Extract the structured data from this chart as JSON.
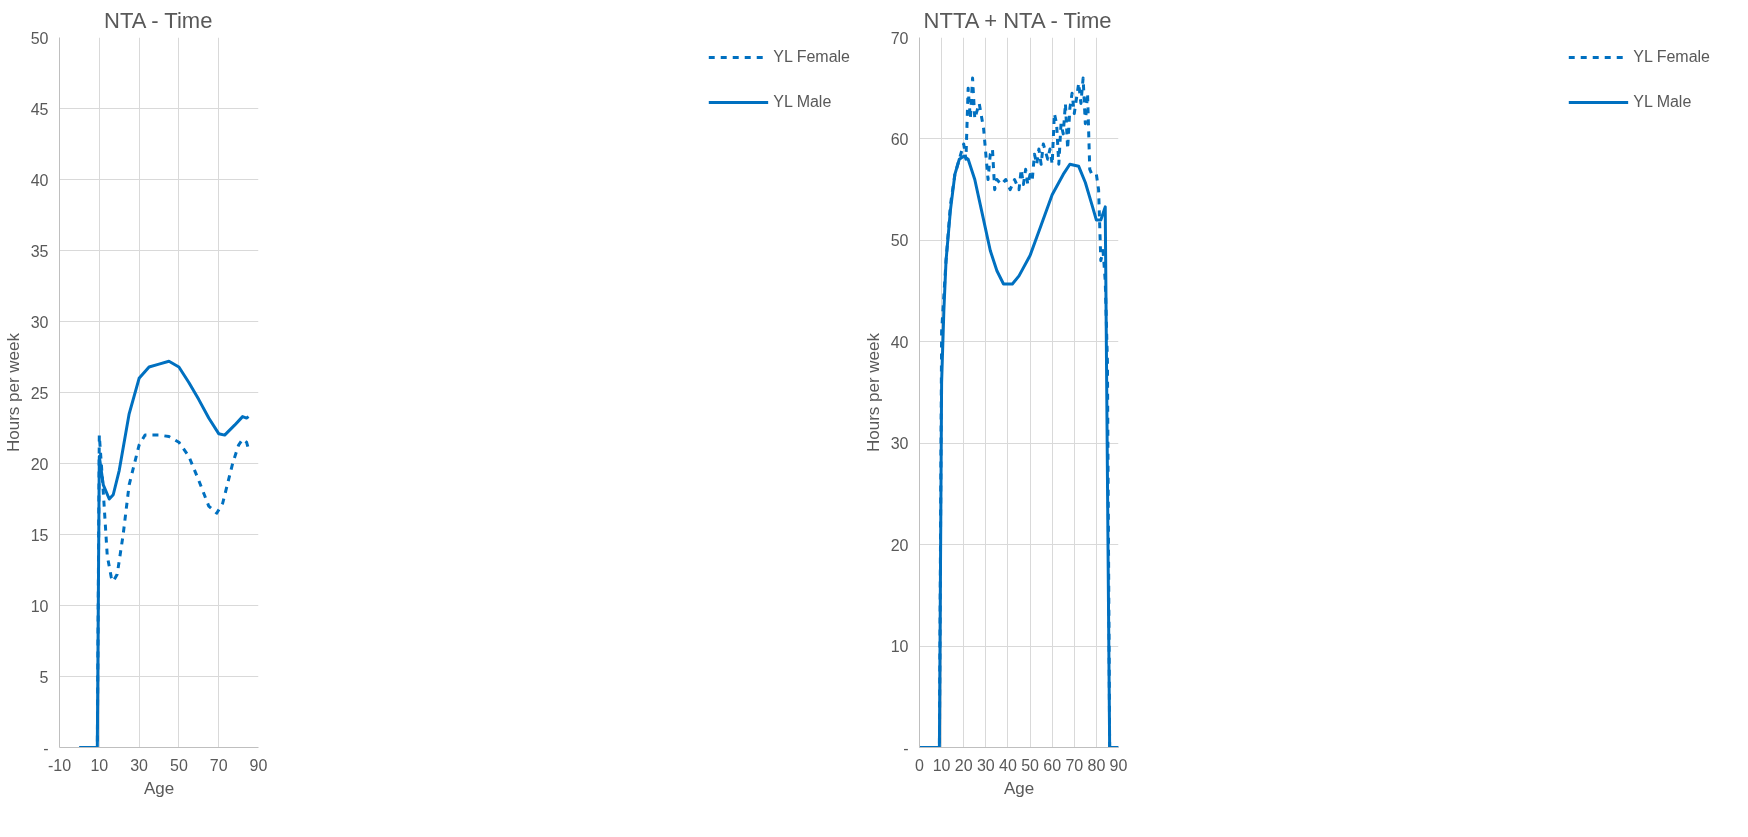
{
  "chart_data": [
    {
      "type": "line",
      "title": "NTA - Time",
      "xlabel": "Age",
      "ylabel": "Hours per week",
      "xlim": [
        -10,
        90
      ],
      "xticks": [
        -10,
        10,
        30,
        50,
        70,
        90
      ],
      "ylim": [
        0,
        50
      ],
      "yticks": [
        {
          "value": 0,
          "label": "-"
        },
        5,
        10,
        15,
        20,
        25,
        30,
        35,
        40,
        45,
        50
      ],
      "grid": true,
      "legend": "right",
      "series": [
        {
          "name": "YL Female",
          "color": "#0070c0",
          "line_style": "dashed",
          "x": [
            0,
            9,
            10,
            10.5,
            12,
            14,
            16,
            17,
            19,
            22,
            25,
            30,
            33,
            40,
            45,
            50,
            55,
            60,
            65,
            69,
            72,
            77,
            80,
            82,
            84,
            85
          ],
          "values": [
            0,
            0,
            22,
            21,
            18,
            13.5,
            12,
            11.7,
            12.2,
            15,
            18.5,
            21.3,
            22,
            22,
            21.9,
            21.5,
            20.5,
            18.8,
            17,
            16.5,
            17.2,
            20,
            21.3,
            21.7,
            21.5,
            21
          ]
        },
        {
          "name": "YL Male",
          "color": "#0070c0",
          "line_style": "solid",
          "x": [
            0,
            9,
            10,
            12,
            15,
            17,
            20,
            25,
            30,
            35,
            40,
            45,
            50,
            55,
            60,
            65,
            70,
            73,
            78,
            82,
            84,
            85
          ],
          "values": [
            0,
            0,
            20.5,
            18.5,
            17.5,
            17.8,
            19.5,
            23.5,
            26,
            26.8,
            27,
            27.2,
            26.8,
            25.7,
            24.5,
            23.2,
            22.1,
            22,
            22.7,
            23.3,
            23.2,
            23.3
          ]
        }
      ]
    },
    {
      "type": "line",
      "title": "NTTA + NTA - Time",
      "xlabel": "Age",
      "ylabel": "Hours per week",
      "xlim": [
        0,
        90
      ],
      "xticks": [
        0,
        10,
        20,
        30,
        40,
        50,
        60,
        70,
        80,
        90
      ],
      "ylim": [
        0,
        70
      ],
      "yticks": [
        {
          "value": 0,
          "label": "-"
        },
        10,
        20,
        30,
        40,
        50,
        60,
        70
      ],
      "grid": true,
      "legend": "right",
      "series": [
        {
          "name": "YL Female",
          "color": "#0070c0",
          "line_style": "dashed",
          "x": [
            0,
            9,
            10,
            12,
            14,
            16,
            18,
            20,
            21,
            22,
            23,
            24,
            25,
            27,
            29,
            31,
            32,
            33,
            34,
            35,
            37,
            39,
            41,
            42,
            43,
            45,
            46,
            47,
            48,
            49,
            50,
            51,
            52,
            53,
            54,
            55,
            56,
            58,
            59,
            60,
            61,
            62,
            63,
            64,
            65,
            66,
            67,
            68,
            69,
            70,
            72,
            73,
            74,
            75,
            76,
            77,
            78,
            80,
            81,
            82,
            83,
            84,
            85,
            86,
            90
          ],
          "values": [
            0,
            0,
            41,
            48,
            53.5,
            56.5,
            58,
            59.5,
            58,
            65,
            62,
            66,
            62,
            63.5,
            61,
            56,
            58.5,
            59,
            55,
            56,
            55.5,
            56,
            55,
            55.5,
            56,
            55,
            57,
            55.5,
            57,
            55.5,
            56.5,
            56,
            58.5,
            57.5,
            59,
            57.5,
            59.5,
            58,
            59,
            57.5,
            62.5,
            61.5,
            57.5,
            61.5,
            60.5,
            63.5,
            59,
            63,
            64.5,
            62.5,
            65.5,
            63.5,
            66,
            61.5,
            64.5,
            57,
            56.5,
            56.5,
            55,
            48,
            49,
            46,
            38,
            0,
            0
          ]
        },
        {
          "name": "YL Male",
          "color": "#0070c0",
          "line_style": "solid",
          "x": [
            0,
            9,
            10,
            11,
            12,
            14,
            16,
            18,
            20,
            22,
            25,
            28,
            32,
            35,
            38,
            42,
            45,
            50,
            55,
            60,
            65,
            68,
            72,
            75,
            78,
            80,
            82,
            84,
            86,
            90
          ],
          "values": [
            0,
            0,
            36,
            43,
            48,
            53,
            56.5,
            58,
            58.3,
            58,
            56,
            53,
            49,
            47,
            45.7,
            45.7,
            46.5,
            48.5,
            51.5,
            54.5,
            56.5,
            57.5,
            57.3,
            55.7,
            53.5,
            52,
            52,
            53.3,
            0,
            0
          ]
        }
      ]
    }
  ]
}
